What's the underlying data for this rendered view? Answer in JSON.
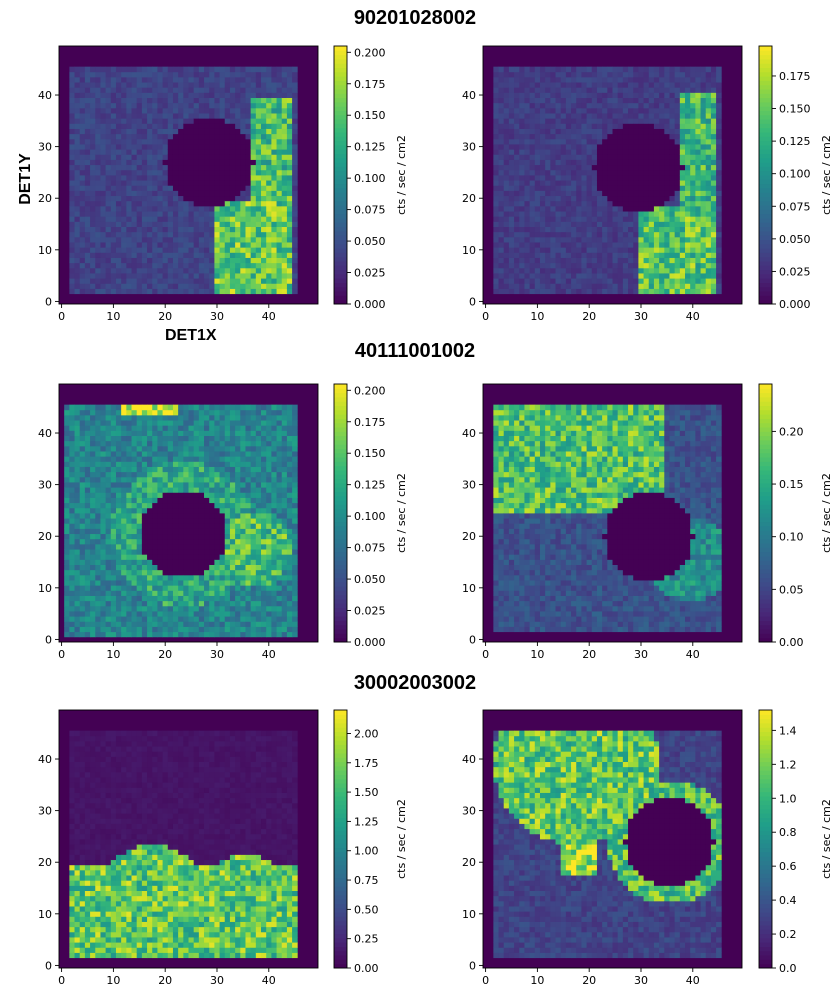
{
  "figure": {
    "xlabel": "DET1X",
    "ylabel": "DET1Y",
    "rows": [
      "90201028002",
      "40111001002",
      "30002003002"
    ]
  },
  "chart_data": [
    {
      "type": "heatmap",
      "row_title": "90201028002",
      "x_ticks": [
        "0",
        "10",
        "20",
        "30",
        "40"
      ],
      "y_ticks": [
        "0",
        "10",
        "20",
        "30",
        "40"
      ],
      "xlim": [
        0,
        49
      ],
      "ylim": [
        0,
        49
      ],
      "colorbar": {
        "label": "cts / sec / cm2",
        "min": 0.0,
        "max": 0.205,
        "ticks": [
          0.0,
          0.025,
          0.05,
          0.075,
          0.1,
          0.125,
          0.15,
          0.175,
          0.2
        ],
        "tick_labels": [
          "0.000",
          "0.025",
          "0.050",
          "0.075",
          "0.100",
          "0.125",
          "0.150",
          "0.175",
          "0.200"
        ]
      },
      "map": {
        "active_x": [
          2,
          46
        ],
        "active_y": [
          2,
          46
        ],
        "background": 0.04,
        "holes": [
          {
            "cx": 29,
            "cy": 27.5,
            "r": 8.5
          }
        ],
        "bright": [
          {
            "kind": "rect",
            "x": [
              30,
              45
            ],
            "y": [
              2,
              20
            ],
            "value": 0.15
          },
          {
            "kind": "rect",
            "x": [
              37,
              45
            ],
            "y": [
              20,
              40
            ],
            "value": 0.14
          }
        ]
      }
    },
    {
      "type": "heatmap",
      "row_title": "90201028002",
      "x_ticks": [
        "0",
        "10",
        "20",
        "30",
        "40"
      ],
      "y_ticks": [
        "0",
        "10",
        "20",
        "30",
        "40"
      ],
      "xlim": [
        0,
        49
      ],
      "ylim": [
        0,
        49
      ],
      "colorbar": {
        "label": "cts / sec / cm2",
        "min": 0.0,
        "max": 0.198,
        "ticks": [
          0.0,
          0.025,
          0.05,
          0.075,
          0.1,
          0.125,
          0.15,
          0.175
        ],
        "tick_labels": [
          "0.000",
          "0.025",
          "0.050",
          "0.075",
          "0.100",
          "0.125",
          "0.150",
          "0.175"
        ]
      },
      "map": {
        "active_x": [
          2,
          46
        ],
        "active_y": [
          2,
          46
        ],
        "background": 0.035,
        "holes": [
          {
            "cx": 30,
            "cy": 26.5,
            "r": 8.5
          }
        ],
        "bright": [
          {
            "kind": "rect",
            "x": [
              30,
              45
            ],
            "y": [
              2,
              19
            ],
            "value": 0.14
          },
          {
            "kind": "rect",
            "x": [
              38,
              45
            ],
            "y": [
              19,
              41
            ],
            "value": 0.13
          }
        ]
      }
    },
    {
      "type": "heatmap",
      "row_title": "40111001002",
      "x_ticks": [
        "0",
        "10",
        "20",
        "30",
        "40"
      ],
      "y_ticks": [
        "0",
        "10",
        "20",
        "30",
        "40"
      ],
      "xlim": [
        0,
        49
      ],
      "ylim": [
        0,
        49
      ],
      "colorbar": {
        "label": "cts / sec / cm2",
        "min": 0.0,
        "max": 0.205,
        "ticks": [
          0.0,
          0.025,
          0.05,
          0.075,
          0.1,
          0.125,
          0.15,
          0.175,
          0.2
        ],
        "tick_labels": [
          "0.000",
          "0.025",
          "0.050",
          "0.075",
          "0.100",
          "0.125",
          "0.150",
          "0.175",
          "0.200"
        ]
      },
      "map": {
        "active_x": [
          1,
          46
        ],
        "active_y": [
          1,
          46
        ],
        "background": 0.09,
        "holes": [
          {
            "cx": 24,
            "cy": 21,
            "r": 8.5
          }
        ],
        "bright": [
          {
            "kind": "rect",
            "x": [
              12,
              23
            ],
            "y": [
              44,
              46
            ],
            "value": 0.2
          },
          {
            "kind": "disc",
            "cx": 38,
            "cy": 18,
            "r": 7,
            "value": 0.14
          },
          {
            "kind": "ring",
            "cx": 24,
            "cy": 21,
            "r1": 8.5,
            "r2": 14,
            "value": 0.12
          }
        ]
      }
    },
    {
      "type": "heatmap",
      "row_title": "40111001002",
      "x_ticks": [
        "0",
        "10",
        "20",
        "30",
        "40"
      ],
      "y_ticks": [
        "0",
        "10",
        "20",
        "30",
        "40"
      ],
      "xlim": [
        0,
        49
      ],
      "ylim": [
        0,
        49
      ],
      "colorbar": {
        "label": "cts / sec / cm2",
        "min": 0.0,
        "max": 0.245,
        "ticks": [
          0.0,
          0.05,
          0.1,
          0.15,
          0.2
        ],
        "tick_labels": [
          "0.00",
          "0.05",
          "0.10",
          "0.15",
          "0.20"
        ]
      },
      "map": {
        "active_x": [
          2,
          46
        ],
        "active_y": [
          2,
          46
        ],
        "background": 0.06,
        "holes": [
          {
            "cx": 32,
            "cy": 20.5,
            "r": 8.5
          }
        ],
        "bright": [
          {
            "kind": "rect",
            "x": [
              2,
              35
            ],
            "y": [
              25,
              46
            ],
            "value": 0.17
          },
          {
            "kind": "disc",
            "cx": 40,
            "cy": 16,
            "r": 8,
            "value": 0.12
          }
        ]
      }
    },
    {
      "type": "heatmap",
      "row_title": "30002003002",
      "x_ticks": [
        "0",
        "10",
        "20",
        "30",
        "40"
      ],
      "y_ticks": [
        "0",
        "10",
        "20",
        "30",
        "40"
      ],
      "xlim": [
        0,
        49
      ],
      "ylim": [
        0,
        49
      ],
      "colorbar": {
        "label": "cts / sec / cm2",
        "min": 0.0,
        "max": 2.2,
        "ticks": [
          0.0,
          0.25,
          0.5,
          0.75,
          1.0,
          1.25,
          1.5,
          1.75,
          2.0
        ],
        "tick_labels": [
          "0.00",
          "0.25",
          "0.50",
          "0.75",
          "1.00",
          "1.25",
          "1.50",
          "1.75",
          "2.00"
        ]
      },
      "map": {
        "active_x": [
          2,
          46
        ],
        "active_y": [
          2,
          46
        ],
        "background": 0.12,
        "holes": [],
        "bright": [
          {
            "kind": "rect",
            "x": [
              2,
              46
            ],
            "y": [
              2,
              20
            ],
            "value": 1.6
          },
          {
            "kind": "disc",
            "cx": 18,
            "cy": 14,
            "r": 10,
            "value": 1.6
          },
          {
            "kind": "disc",
            "cx": 36,
            "cy": 12,
            "r": 10,
            "value": 1.6
          }
        ]
      }
    },
    {
      "type": "heatmap",
      "row_title": "30002003002",
      "x_ticks": [
        "0",
        "10",
        "20",
        "30",
        "40"
      ],
      "y_ticks": [
        "0",
        "10",
        "20",
        "30",
        "40"
      ],
      "xlim": [
        0,
        49
      ],
      "ylim": [
        0,
        49
      ],
      "colorbar": {
        "label": "cts / sec / cm2",
        "min": 0.0,
        "max": 1.52,
        "ticks": [
          0.0,
          0.2,
          0.4,
          0.6,
          0.8,
          1.0,
          1.2,
          1.4
        ],
        "tick_labels": [
          "0.0",
          "0.2",
          "0.4",
          "0.6",
          "0.8",
          "1.0",
          "1.2",
          "1.4"
        ]
      },
      "map": {
        "active_x": [
          2,
          46
        ],
        "active_y": [
          2,
          46
        ],
        "background": 0.3,
        "holes": [
          {
            "cx": 36,
            "cy": 24.5,
            "r": 8.5
          }
        ],
        "bright": [
          {
            "kind": "disc",
            "cx": 18,
            "cy": 40,
            "r": 16,
            "value": 1.1
          },
          {
            "kind": "ring",
            "cx": 36,
            "cy": 24.5,
            "r1": 8.5,
            "r2": 12,
            "value": 1.05
          },
          {
            "kind": "rect",
            "x": [
              15,
              22
            ],
            "y": [
              18,
              24
            ],
            "value": 1.3
          }
        ]
      }
    }
  ]
}
